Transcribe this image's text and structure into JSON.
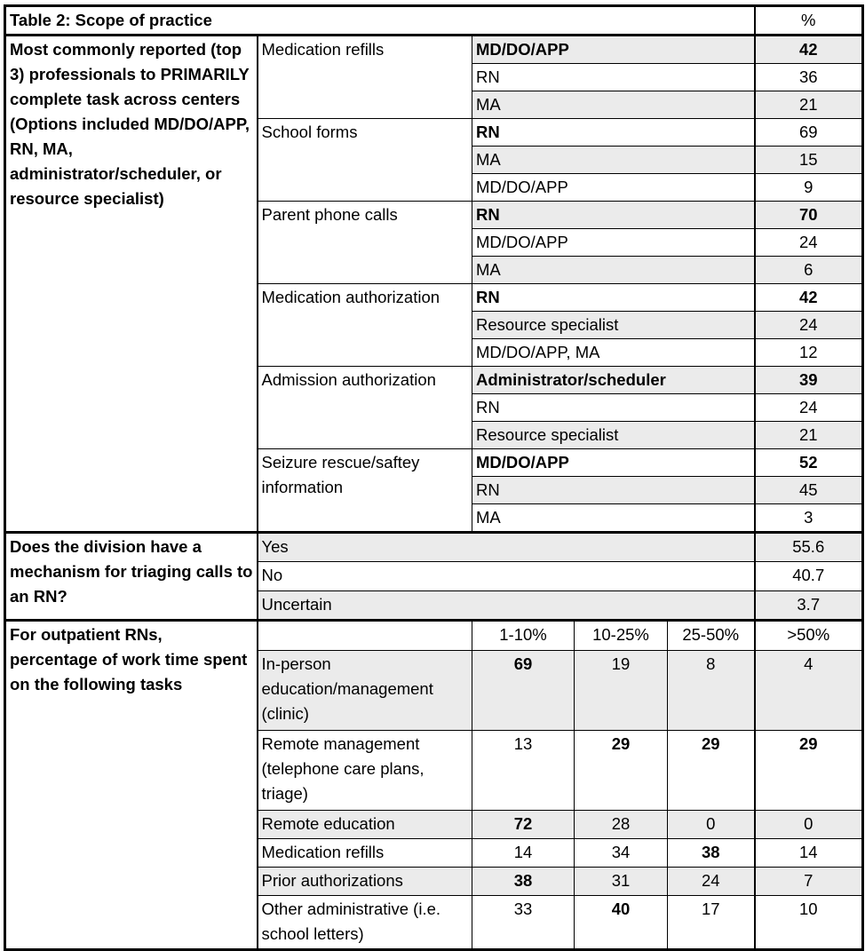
{
  "title": "Table 2: Scope of practice",
  "pct_header": "%",
  "section1": {
    "label": "Most commonly reported (top 3) professionals to PRIMARILY complete task across centers (Options included MD/DO/APP, RN, MA, administrator/scheduler, or resource specialist)",
    "tasks": [
      {
        "task": "Medication refills",
        "rows": [
          {
            "who": "MD/DO/APP",
            "pct": "42",
            "bold_who": true,
            "bold_pct": true
          },
          {
            "who": "RN",
            "pct": "36"
          },
          {
            "who": "MA",
            "pct": "21"
          }
        ]
      },
      {
        "task": "School forms",
        "rows": [
          {
            "who": "RN",
            "pct": "69",
            "bold_who": true
          },
          {
            "who": "MA",
            "pct": "15"
          },
          {
            "who": "MD/DO/APP",
            "pct": "9"
          }
        ]
      },
      {
        "task": "Parent phone calls",
        "rows": [
          {
            "who": "RN",
            "pct": "70",
            "bold_who": true,
            "bold_pct": true
          },
          {
            "who": "MD/DO/APP",
            "pct": "24"
          },
          {
            "who": "MA",
            "pct": "6"
          }
        ]
      },
      {
        "task": "Medication authorization",
        "rows": [
          {
            "who": "RN",
            "pct": "42",
            "bold_who": true,
            "bold_pct": true
          },
          {
            "who": "Resource specialist",
            "pct": "24"
          },
          {
            "who": "MD/DO/APP, MA",
            "pct": "12"
          }
        ]
      },
      {
        "task": "Admission authorization",
        "rows": [
          {
            "who": "Administrator/scheduler",
            "pct": "39",
            "bold_who": true,
            "bold_pct": true
          },
          {
            "who": "RN",
            "pct": "24"
          },
          {
            "who": "Resource specialist",
            "pct": "21"
          }
        ]
      },
      {
        "task": "Seizure rescue/saftey information",
        "rows": [
          {
            "who": "MD/DO/APP",
            "pct": "52",
            "bold_who": true,
            "bold_pct": true
          },
          {
            "who": "RN",
            "pct": "45"
          },
          {
            "who": "MA",
            "pct": "3"
          }
        ]
      }
    ]
  },
  "section2": {
    "label": "Does the division have a mechanism for triaging calls to an RN?",
    "rows": [
      {
        "answer": "Yes",
        "pct": "55.6"
      },
      {
        "answer": "No",
        "pct": "40.7"
      },
      {
        "answer": "Uncertain",
        "pct": "3.7"
      }
    ]
  },
  "section3": {
    "label": "For outpatient RNs, percentage of work time spent on the following tasks",
    "columns": [
      "1-10%",
      "10-25%",
      "25-50%",
      ">50%"
    ],
    "rows": [
      {
        "task": "In-person education/management (clinic)",
        "values": [
          "69",
          "19",
          "8",
          "4"
        ],
        "bold": [
          0
        ],
        "lines": 3
      },
      {
        "task": "Remote management (telephone care plans, triage)",
        "values": [
          "13",
          "29",
          "29",
          "29"
        ],
        "bold": [
          1,
          2,
          3
        ],
        "lines": 3
      },
      {
        "task": "Remote education",
        "values": [
          "72",
          "28",
          "0",
          "0"
        ],
        "bold": [
          0
        ],
        "lines": 1
      },
      {
        "task": "Medication refills",
        "values": [
          "14",
          "34",
          "38",
          "14"
        ],
        "bold": [
          2
        ],
        "lines": 1
      },
      {
        "task": "Prior authorizations",
        "values": [
          "38",
          "31",
          "24",
          "7"
        ],
        "bold": [
          0
        ],
        "lines": 1
      },
      {
        "task": "Other administrative (i.e. school letters)",
        "values": [
          "33",
          "40",
          "17",
          "10"
        ],
        "bold": [
          1
        ],
        "lines": 2
      }
    ]
  },
  "colors": {
    "shade": "#ebebeb",
    "border": "#000000"
  }
}
